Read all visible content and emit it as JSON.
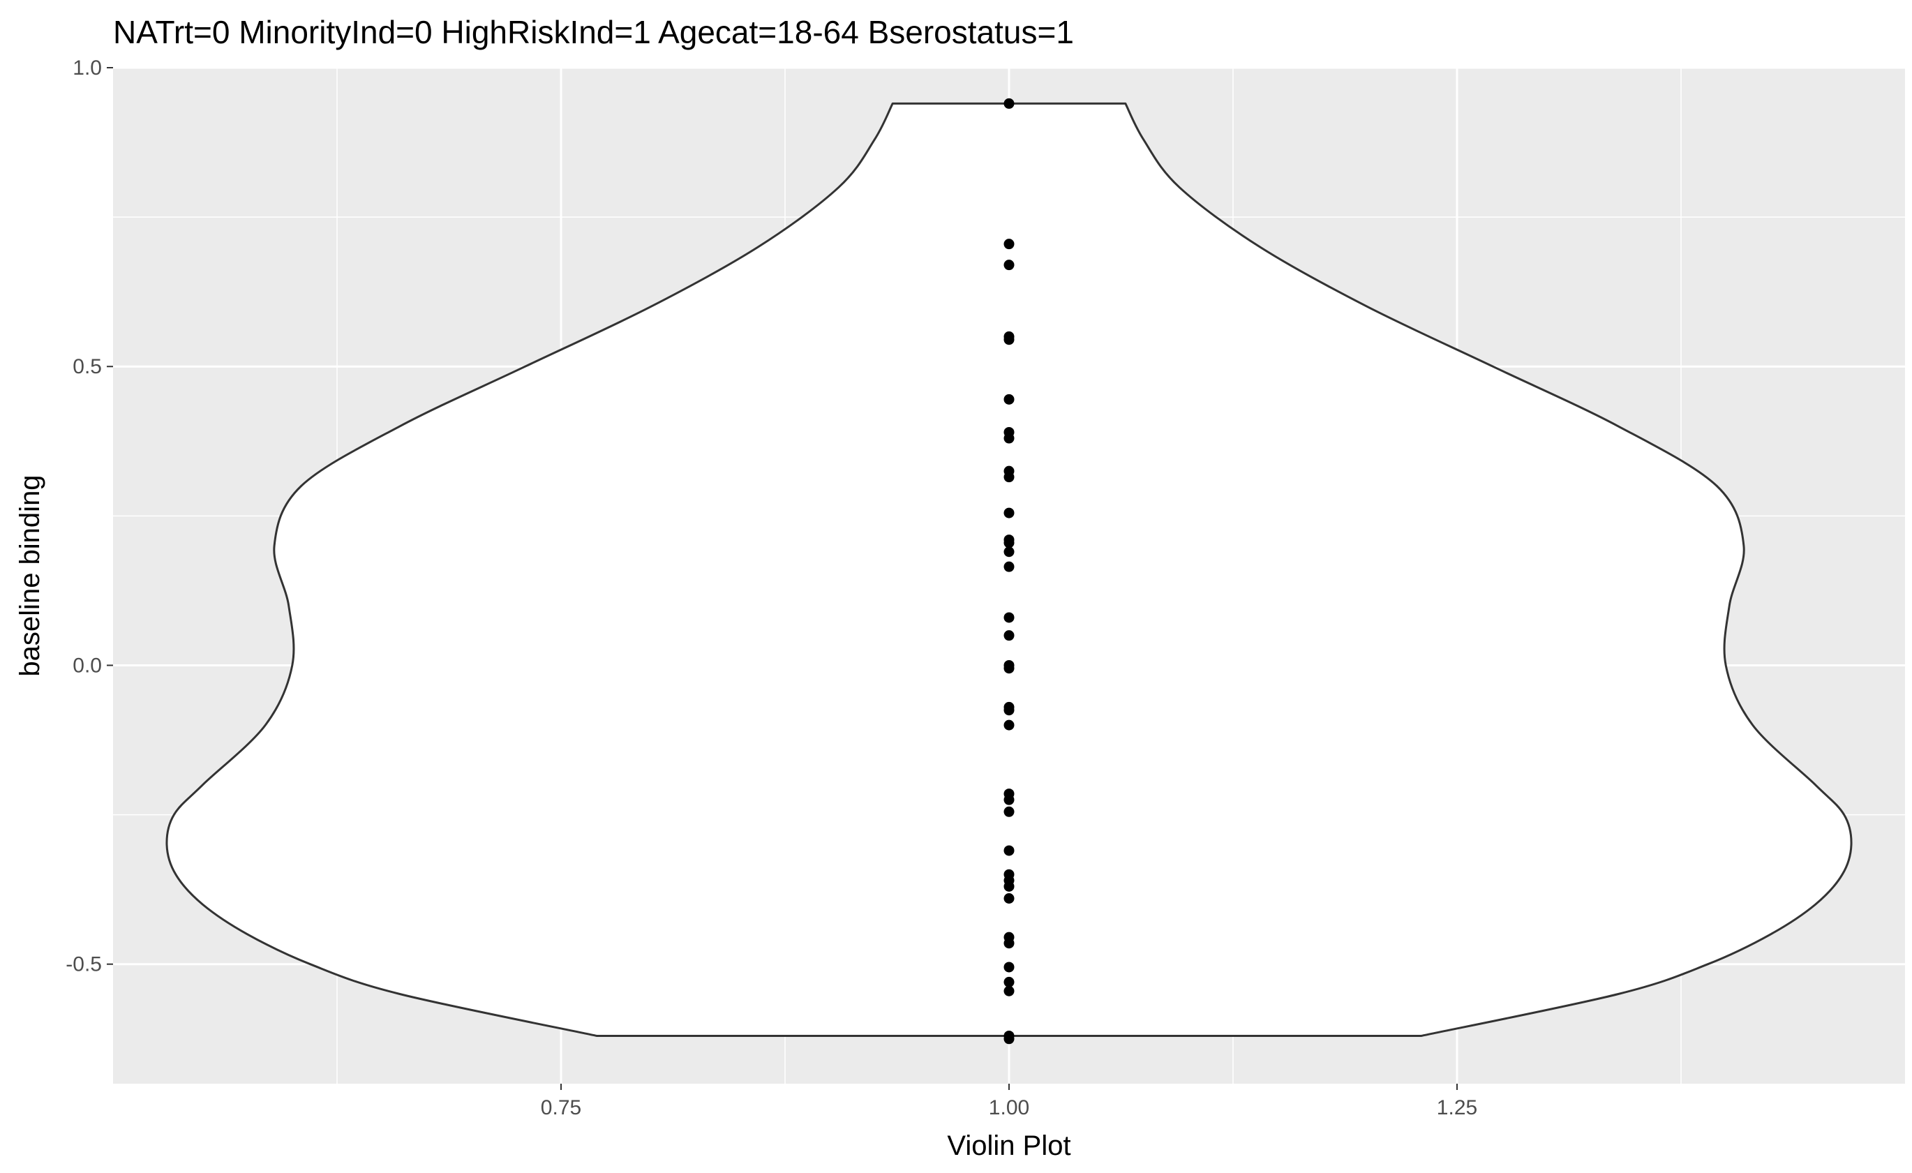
{
  "chart_data": {
    "type": "violin",
    "title": "NATrt=0 MinorityInd=0 HighRiskInd=1 Agecat=18-64 Bserostatus=1",
    "xlabel": "Violin Plot",
    "ylabel": "baseline binding",
    "xlim": [
      0.5,
      1.5
    ],
    "ylim": [
      -0.7,
      1.0
    ],
    "x_ticks": [
      0.75,
      1.0,
      1.25
    ],
    "x_tick_labels": [
      "0.75",
      "1.00",
      "1.25"
    ],
    "y_ticks": [
      1.0,
      0.5,
      0.0,
      -0.5
    ],
    "y_tick_labels": [
      "1.0",
      "0.5",
      "0.0",
      "-0.5"
    ],
    "grid": true,
    "background": "#ebebeb",
    "violin": {
      "center_x": 1.0,
      "fill": "#ffffff",
      "outline": "#333333",
      "half_width_profile": [
        {
          "y": -0.62,
          "w": 0.23
        },
        {
          "y": -0.55,
          "w": 0.34
        },
        {
          "y": -0.5,
          "w": 0.39
        },
        {
          "y": -0.45,
          "w": 0.425
        },
        {
          "y": -0.4,
          "w": 0.45
        },
        {
          "y": -0.35,
          "w": 0.465
        },
        {
          "y": -0.3,
          "w": 0.47
        },
        {
          "y": -0.25,
          "w": 0.466
        },
        {
          "y": -0.2,
          "w": 0.45
        },
        {
          "y": -0.1,
          "w": 0.415
        },
        {
          "y": 0.0,
          "w": 0.4
        },
        {
          "y": 0.1,
          "w": 0.402
        },
        {
          "y": 0.2,
          "w": 0.41
        },
        {
          "y": 0.3,
          "w": 0.395
        },
        {
          "y": 0.4,
          "w": 0.34
        },
        {
          "y": 0.5,
          "w": 0.27
        },
        {
          "y": 0.6,
          "w": 0.2
        },
        {
          "y": 0.7,
          "w": 0.14
        },
        {
          "y": 0.8,
          "w": 0.095
        },
        {
          "y": 0.88,
          "w": 0.075
        },
        {
          "y": 0.94,
          "w": 0.065
        }
      ]
    },
    "points": {
      "x": 1.0,
      "color": "#000000",
      "y": [
        0.94,
        0.705,
        0.67,
        0.55,
        0.545,
        0.445,
        0.39,
        0.38,
        0.325,
        0.315,
        0.255,
        0.21,
        0.205,
        0.19,
        0.165,
        0.08,
        0.05,
        0.0,
        -0.005,
        -0.07,
        -0.075,
        -0.1,
        -0.215,
        -0.225,
        -0.245,
        -0.31,
        -0.35,
        -0.36,
        -0.37,
        -0.39,
        -0.455,
        -0.465,
        -0.505,
        -0.53,
        -0.545,
        -0.62,
        -0.625
      ]
    }
  }
}
